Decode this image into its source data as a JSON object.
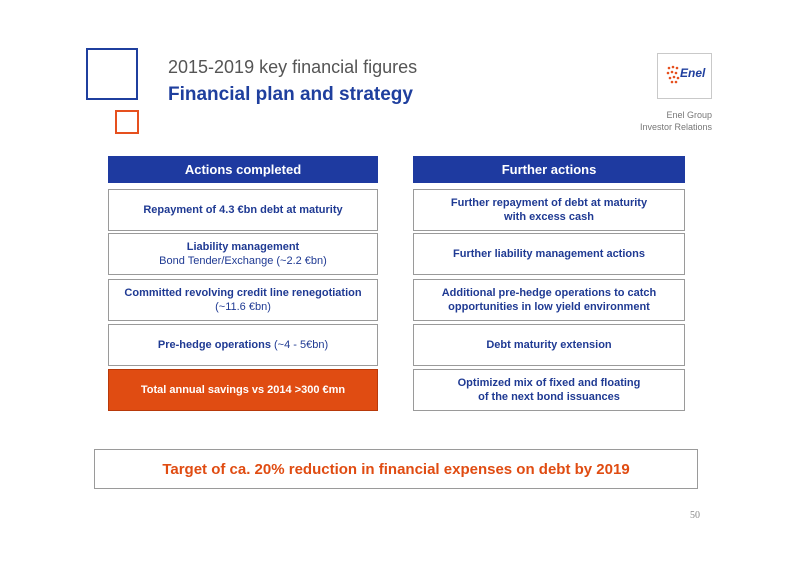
{
  "header": {
    "subtitle": "2015-2019 key financial figures",
    "title": "Financial plan and strategy"
  },
  "logo": {
    "text": "Enel"
  },
  "investor_relations": {
    "line1": "Enel Group",
    "line2": "Investor Relations"
  },
  "left_column": {
    "header": "Actions completed",
    "items": [
      {
        "line1": "Repayment of 4.3 €bn debt at maturity",
        "line2": ""
      },
      {
        "line1": "Liability management",
        "line2": "Bond Tender/Exchange (~2.2 €bn)"
      },
      {
        "line1": "Committed revolving credit line renegotiation",
        "line2": "(~11.6 €bn)"
      },
      {
        "line1": "Pre-hedge operations",
        "line2": " (~4 - 5€bn)"
      },
      {
        "line1": "Total annual savings vs 2014 >300 €mn",
        "line2": ""
      }
    ]
  },
  "right_column": {
    "header": "Further actions",
    "items": [
      {
        "line1": "Further repayment of debt at maturity",
        "line2": "with excess cash"
      },
      {
        "line1": "Further liability management actions",
        "line2": ""
      },
      {
        "line1": "Additional pre-hedge operations to catch",
        "line2": "opportunities in low yield environment"
      },
      {
        "line1": "Debt maturity extension",
        "line2": ""
      },
      {
        "line1": "Optimized mix of fixed and floating",
        "line2": "of the next bond issuances"
      }
    ]
  },
  "target": "Target of ca. 20% reduction in financial expenses on debt by 2019",
  "page_number": "50",
  "colors": {
    "blue": "#1e3aa0",
    "orange": "#e04c12"
  }
}
